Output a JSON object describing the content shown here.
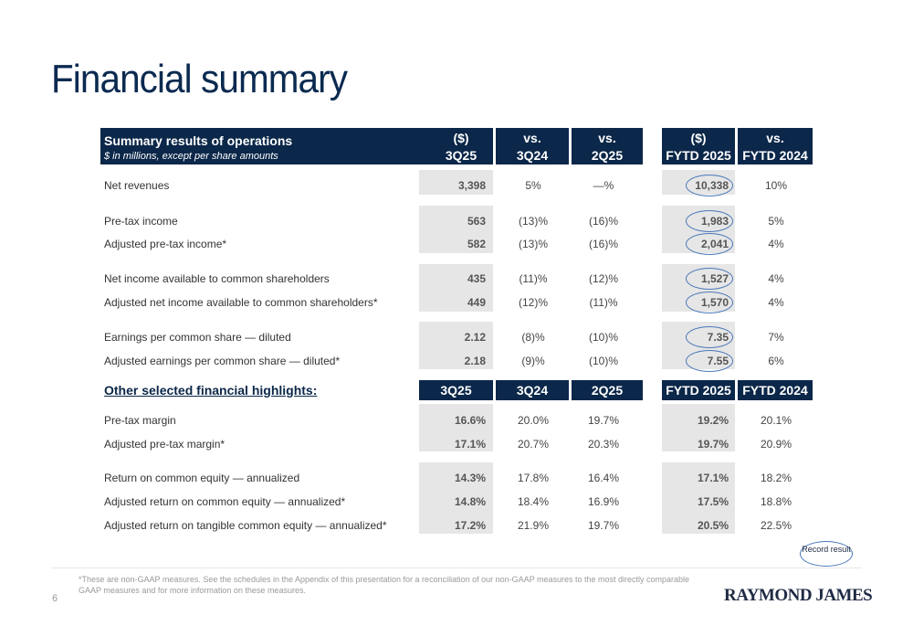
{
  "title": "Financial summary",
  "header": {
    "section_title": "Summary results of operations",
    "section_subtitle": "$ in millions, except per share amounts",
    "col1_top": "($)",
    "col1_bottom": "3Q25",
    "col2_top": "vs.",
    "col2_bottom": "3Q24",
    "col3_top": "vs.",
    "col3_bottom": "2Q25",
    "col4_top": "($)",
    "col4_bottom": "FYTD 2025",
    "col5_top": "vs.",
    "col5_bottom": "FYTD 2024"
  },
  "ops_rows": [
    {
      "label": "Net revenues",
      "q": "3,398",
      "vs3q24": "5%",
      "vs2q25": "—%",
      "fytd": "10,338",
      "vsfytd": "10%"
    },
    {
      "label": "Pre-tax income",
      "q": "563",
      "vs3q24": "(13)%",
      "vs2q25": "(16)%",
      "fytd": "1,983",
      "vsfytd": "5%"
    },
    {
      "label": "Adjusted pre-tax income*",
      "q": "582",
      "vs3q24": "(13)%",
      "vs2q25": "(16)%",
      "fytd": "2,041",
      "vsfytd": "4%"
    },
    {
      "label": "Net income available to common shareholders",
      "q": "435",
      "vs3q24": "(11)%",
      "vs2q25": "(12)%",
      "fytd": "1,527",
      "vsfytd": "4%"
    },
    {
      "label": "Adjusted net income available to common shareholders*",
      "q": "449",
      "vs3q24": "(12)%",
      "vs2q25": "(11)%",
      "fytd": "1,570",
      "vsfytd": "4%"
    },
    {
      "label": "Earnings per common share — diluted",
      "q": "2.12",
      "vs3q24": "(8)%",
      "vs2q25": "(10)%",
      "fytd": "7.35",
      "vsfytd": "7%"
    },
    {
      "label": "Adjusted earnings per common share — diluted*",
      "q": "2.18",
      "vs3q24": "(9)%",
      "vs2q25": "(10)%",
      "fytd": "7.55",
      "vsfytd": "6%"
    }
  ],
  "highlights_header": {
    "title": "Other selected financial highlights:",
    "c1": "3Q25",
    "c2": "3Q24",
    "c3": "2Q25",
    "c4": "FYTD 2025",
    "c5": "FYTD 2024"
  },
  "highlight_rows": [
    {
      "label": "Pre-tax margin",
      "q": "16.6%",
      "q3q24": "20.0%",
      "q2q25": "19.7%",
      "fytd": "19.2%",
      "fytd24": "20.1%"
    },
    {
      "label": "Adjusted pre-tax margin*",
      "q": "17.1%",
      "q3q24": "20.7%",
      "q2q25": "20.3%",
      "fytd": "19.7%",
      "fytd24": "20.9%"
    },
    {
      "label": "Return on common equity — annualized",
      "q": "14.3%",
      "q3q24": "17.8%",
      "q2q25": "16.4%",
      "fytd": "17.1%",
      "fytd24": "18.2%"
    },
    {
      "label": "Adjusted return on common equity — annualized*",
      "q": "14.8%",
      "q3q24": "18.4%",
      "q2q25": "16.9%",
      "fytd": "17.5%",
      "fytd24": "18.8%"
    },
    {
      "label": "Adjusted return on tangible common equity — annualized*",
      "q": "17.2%",
      "q3q24": "21.9%",
      "q2q25": "19.7%",
      "fytd": "20.5%",
      "fytd24": "22.5%"
    }
  ],
  "record_label": "Record result",
  "footnote": "*These are non-GAAP measures. See the schedules in the Appendix of this presentation for a reconciliation of our non-GAAP measures to the most directly comparable GAAP measures and for more information on these measures.",
  "page_number": "6",
  "logo_text": "RAYMOND JAMES",
  "colors": {
    "navy": "#0b2749",
    "title": "#0a2a50",
    "shade": "#e6e6e6",
    "oval": "#4a78b8"
  }
}
